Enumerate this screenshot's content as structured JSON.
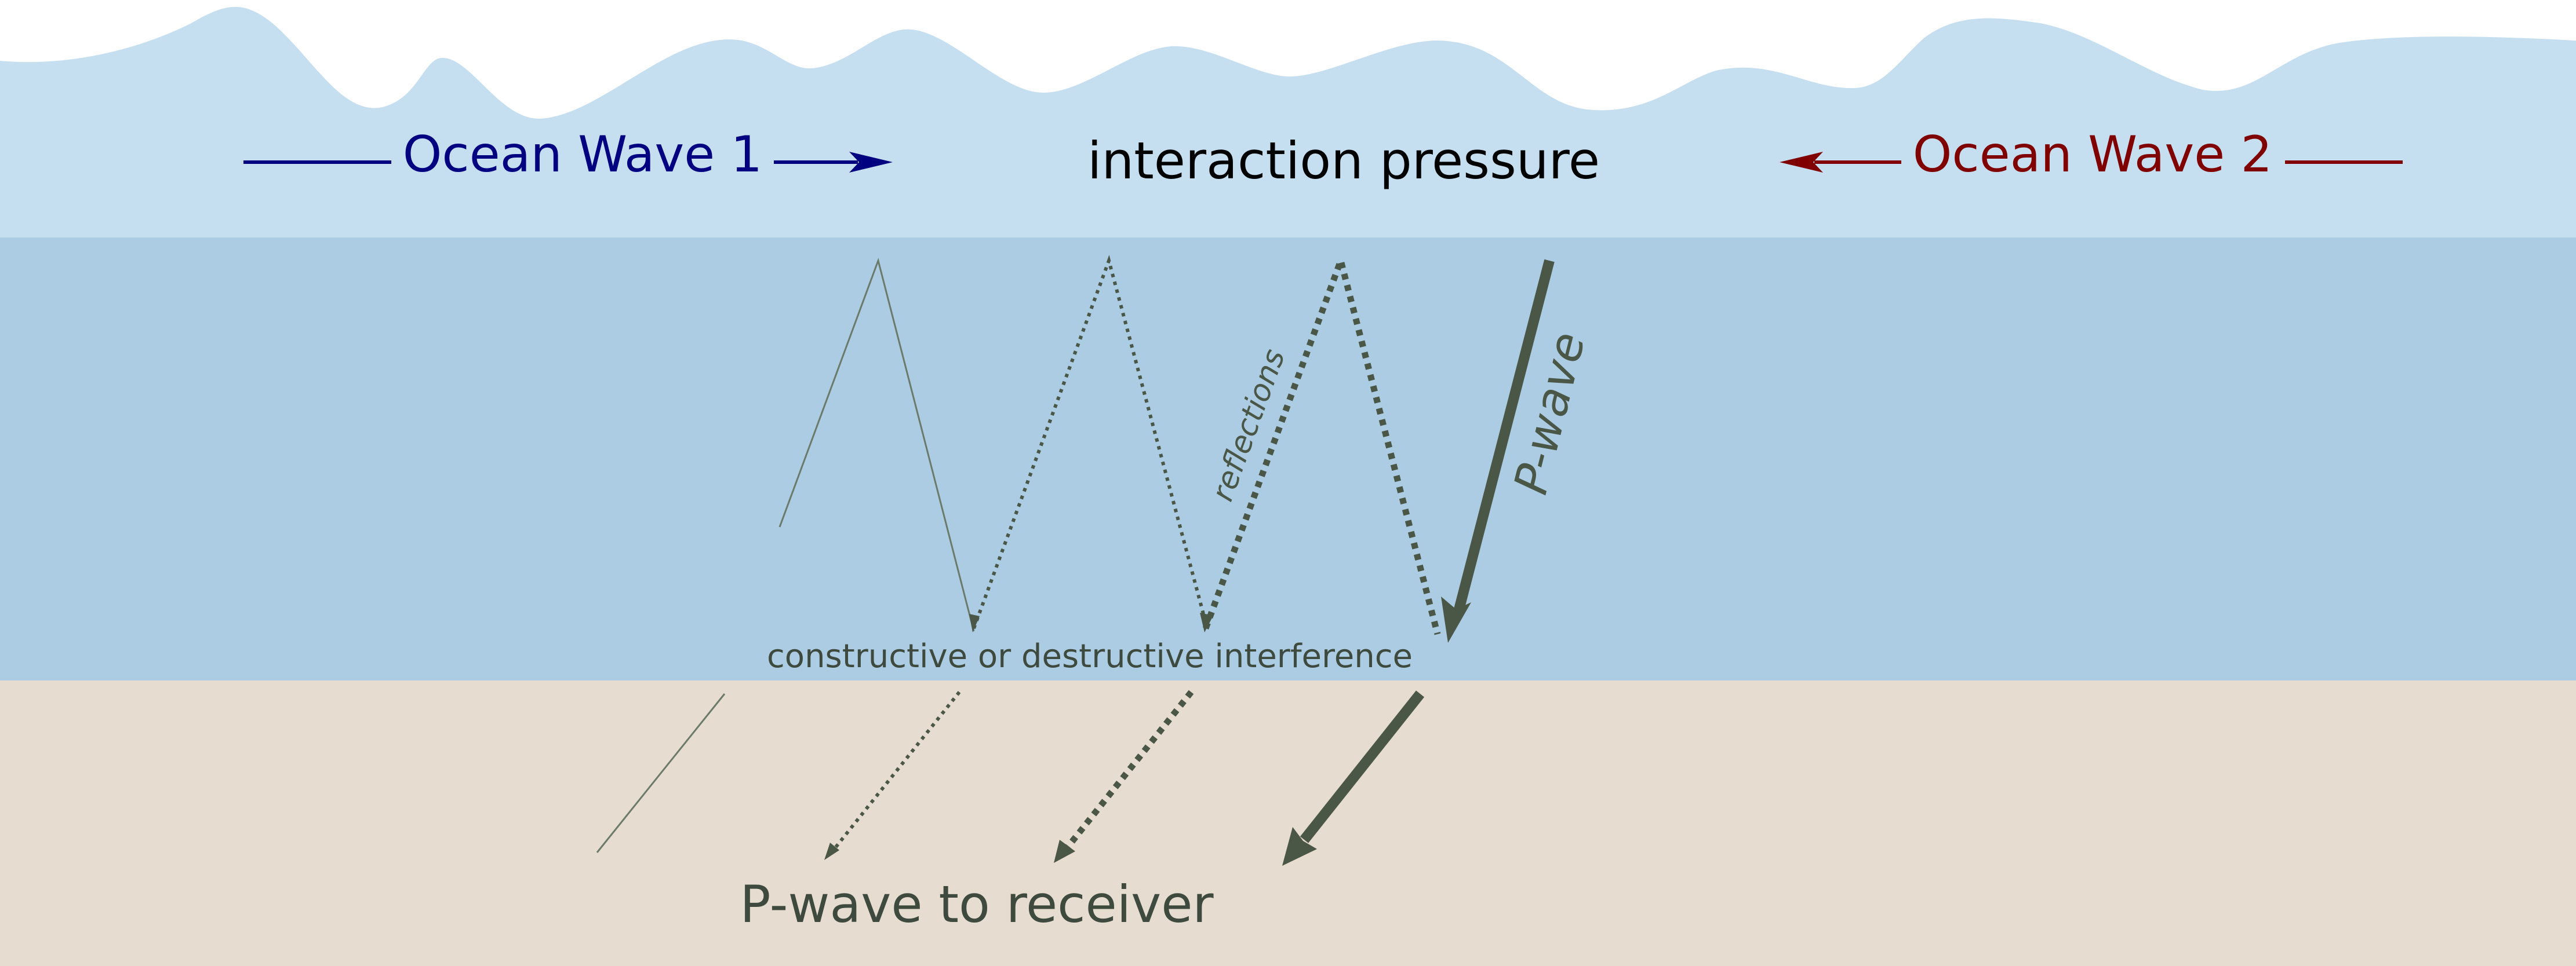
{
  "labels": {
    "ocean_wave_1": "Ocean Wave 1",
    "ocean_wave_2": "Ocean Wave 2",
    "interaction_pressure": "interaction pressure",
    "p_wave": "P-wave",
    "reflections": "reflections",
    "interference": "constructive or destructive interference",
    "p_wave_to_receiver": "P-wave to receiver"
  },
  "colors": {
    "sky": "#ffffff",
    "ocean_surface": "#c5dff1",
    "ocean_deep": "#abcce3",
    "seabed": "#e6dcd0",
    "wave1": "#000080",
    "wave2": "#800000",
    "ray": "#4a5646",
    "text_dark": "#000000",
    "text_ray": "#3e4a3e"
  },
  "icons": {
    "wave1_arrow": "arrow-right-icon",
    "wave2_arrow": "arrow-left-icon",
    "ray_arrow": "arrow-down-icon"
  }
}
